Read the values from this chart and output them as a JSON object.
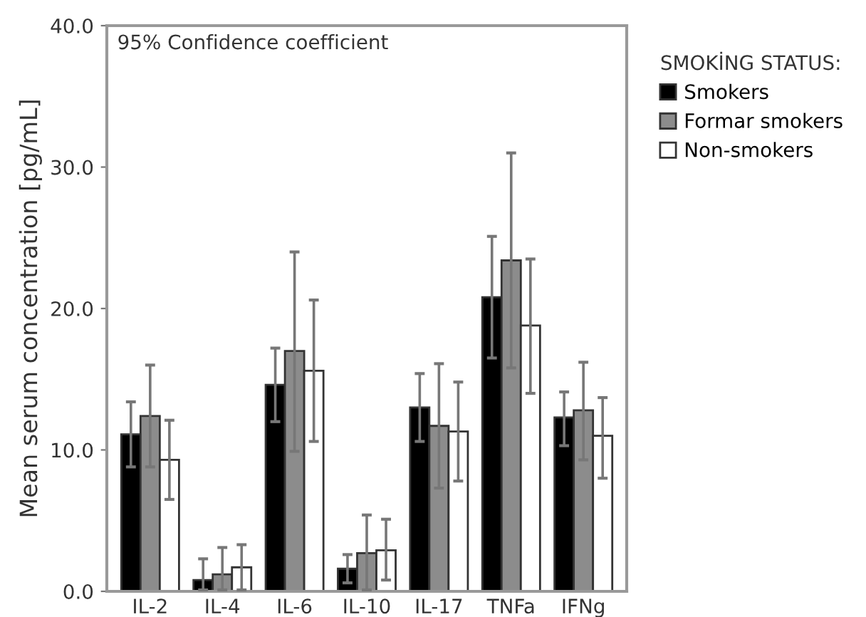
{
  "chart_data": {
    "type": "bar",
    "ylabel": "Mean serum concentration [pg/mL]",
    "legend_title": "SMOKİNG STATUS:",
    "annotations": [
      "95% Confidence coefficient"
    ],
    "categories": [
      "IL-2",
      "IL-4",
      "IL-6",
      "IL-10",
      "IL-17",
      "TNFa",
      "IFNg"
    ],
    "series": [
      {
        "name": "Smokers",
        "color": "#000000",
        "values": [
          11.1,
          0.8,
          14.6,
          1.6,
          13.0,
          20.8,
          12.3
        ],
        "errors": [
          [
            8.8,
            13.4
          ],
          [
            0.1,
            2.3
          ],
          [
            12.0,
            17.2
          ],
          [
            0.6,
            2.6
          ],
          [
            10.6,
            15.4
          ],
          [
            16.5,
            25.1
          ],
          [
            10.3,
            14.1
          ]
        ]
      },
      {
        "name": "Formar smokers",
        "color": "#8c8c8c",
        "values": [
          12.4,
          1.2,
          17.0,
          2.7,
          11.7,
          23.4,
          12.8
        ],
        "errors": [
          [
            8.8,
            16.0
          ],
          [
            0.1,
            3.1
          ],
          [
            9.9,
            24.0
          ],
          [
            0.1,
            5.4
          ],
          [
            7.3,
            16.1
          ],
          [
            15.8,
            31.0
          ],
          [
            9.3,
            16.2
          ]
        ]
      },
      {
        "name": "Non-smokers",
        "color": "#ffffff",
        "values": [
          9.3,
          1.7,
          15.6,
          2.9,
          11.3,
          18.8,
          11.0
        ],
        "errors": [
          [
            6.5,
            12.1
          ],
          [
            0.1,
            3.3
          ],
          [
            10.6,
            20.6
          ],
          [
            0.8,
            5.1
          ],
          [
            7.8,
            14.8
          ],
          [
            14.0,
            23.5
          ],
          [
            8.0,
            13.7
          ]
        ]
      }
    ],
    "ylim": [
      0,
      40
    ],
    "yticks": [
      {
        "value": 0,
        "label": "0.0"
      },
      {
        "value": 10,
        "label": "10.0"
      },
      {
        "value": 20,
        "label": "20.0"
      },
      {
        "value": 30,
        "label": "30.0"
      },
      {
        "value": 40,
        "label": "40.0"
      }
    ],
    "legend": "right",
    "grid": false
  }
}
